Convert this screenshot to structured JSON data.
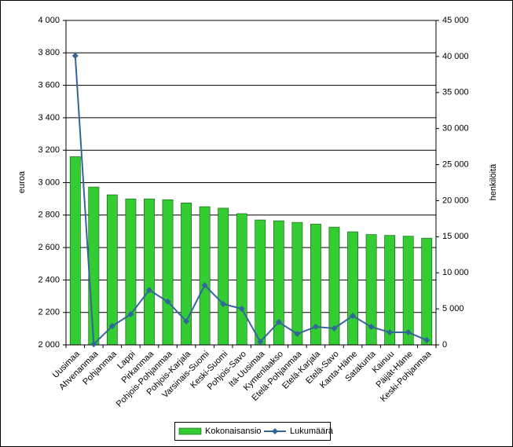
{
  "chart_data": {
    "type": "bar",
    "y_label": "euroa",
    "y2_label": "henkilöitä",
    "categories": [
      "Uusimaa",
      "Ahvenanmaa",
      "Pohjanmaa",
      "Lappi",
      "Pirkanmaa",
      "Pohjois-Pohjanmaa",
      "Pohjois-Karjala",
      "Varsinais-Suomi",
      "Keski-Suomi",
      "Pohjois-Savo",
      "Itä-Uusimaa",
      "Kymenlaakso",
      "Etelä-Pohjanmaa",
      "Etelä-Karjala",
      "Etelä-Savo",
      "Kanta-Häme",
      "Satakunta",
      "Kainuu",
      "Päijät-Häme",
      "Keski-Pohjanmaa"
    ],
    "series": [
      {
        "name": "Kokonaisansio",
        "type": "bar",
        "color": "#33cc33",
        "values": [
          3160,
          2973,
          2925,
          2900,
          2900,
          2895,
          2875,
          2852,
          2843,
          2809,
          2770,
          2765,
          2755,
          2745,
          2726,
          2697,
          2680,
          2675,
          2670,
          2658
        ]
      },
      {
        "name": "Lukumäärä",
        "type": "line",
        "axis": "y2",
        "color": "#336699",
        "values": [
          40100,
          100,
          2600,
          4250,
          7600,
          6000,
          3270,
          8280,
          5670,
          5010,
          440,
          3160,
          1530,
          2500,
          2290,
          4030,
          2500,
          1740,
          1740,
          650
        ]
      }
    ],
    "ylim": [
      2000,
      4000
    ],
    "yticks": [
      {
        "value": 2000,
        "label": "2 000"
      },
      {
        "value": 2200,
        "label": "2 200"
      },
      {
        "value": 2400,
        "label": "2 400"
      },
      {
        "value": 2600,
        "label": "2 600"
      },
      {
        "value": 2800,
        "label": "2 800"
      },
      {
        "value": 3000,
        "label": "3 000"
      },
      {
        "value": 3200,
        "label": "3 200"
      },
      {
        "value": 3400,
        "label": "3 400"
      },
      {
        "value": 3600,
        "label": "3 600"
      },
      {
        "value": 3800,
        "label": "3 800"
      },
      {
        "value": 4000,
        "label": "4 000"
      }
    ],
    "y2lim": [
      0,
      45000
    ],
    "y2ticks": [
      0,
      {
        "value": 5000,
        "label": "5 000"
      },
      {
        "value": 10000,
        "label": "10 000"
      },
      {
        "value": 15000,
        "label": "15 000"
      },
      {
        "value": 20000,
        "label": "20 000"
      },
      {
        "value": 25000,
        "label": "25 000"
      },
      {
        "value": 30000,
        "label": "30 000"
      },
      {
        "value": 35000,
        "label": "35 000"
      },
      {
        "value": 40000,
        "label": "40 000"
      },
      {
        "value": 45000,
        "label": "45 000"
      }
    ],
    "grid": true,
    "legend": "bottom"
  }
}
